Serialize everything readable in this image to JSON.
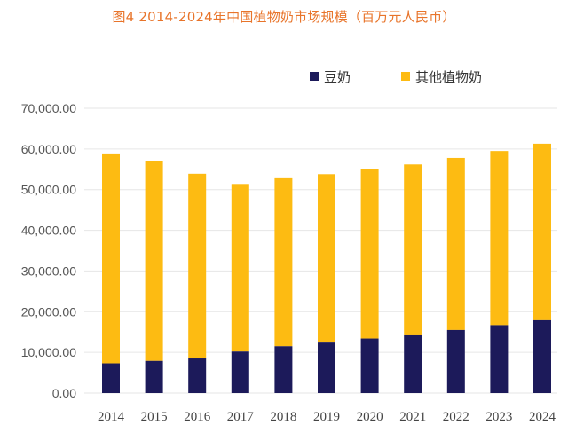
{
  "title": "图4 2014-2024年中国植物奶市场规模（百万元人民币）",
  "colors": {
    "soy": "#1c1a5a",
    "other": "#fdbb12",
    "grid": "#e6e6e6",
    "title": "#e8742a"
  },
  "chart_data": {
    "type": "bar",
    "stacked": true,
    "title": "图4 2014-2024年中国植物奶市场规模（百万元人民币）",
    "xlabel": "",
    "ylabel": "",
    "ylim": [
      0,
      70000
    ],
    "yticks": [
      "0.00",
      "10,000.00",
      "20,000.00",
      "30,000.00",
      "40,000.00",
      "50,000.00",
      "60,000.00",
      "70,000.00"
    ],
    "grid": true,
    "legend_position": "top-right",
    "categories": [
      "2014",
      "2015",
      "2016",
      "2017",
      "2018",
      "2019",
      "2020",
      "2021",
      "2022",
      "2023",
      "2024"
    ],
    "series": [
      {
        "name": "豆奶",
        "values": [
          7300,
          7900,
          8500,
          10200,
          11500,
          12400,
          13400,
          14400,
          15500,
          16700,
          17900
        ]
      },
      {
        "name": "其他植物奶",
        "values": [
          51600,
          49200,
          45400,
          41200,
          41300,
          41400,
          41600,
          41800,
          42300,
          42800,
          43400
        ]
      }
    ]
  }
}
